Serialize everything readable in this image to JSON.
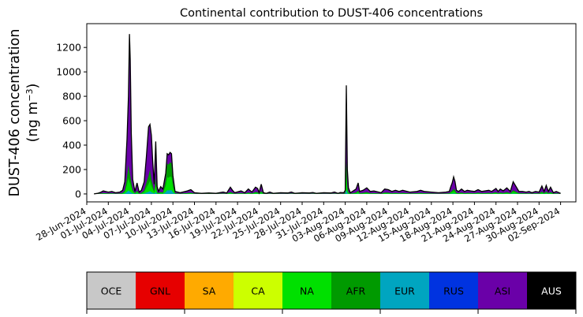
{
  "chart_data": {
    "type": "area",
    "stacked": true,
    "title": "Continental contribution to DUST-406 concentrations",
    "ylabel_line1": "DUST-406 concentration",
    "ylabel_line2_prefix": "(ng m",
    "ylabel_line2_sup": "−3",
    "ylabel_line2_suffix": ")",
    "ylim": [
      -65,
      1395
    ],
    "xlim": [
      "2024-06-28",
      "2024-09-03"
    ],
    "yticks": [
      0,
      200,
      400,
      600,
      800,
      1000,
      1200
    ],
    "xtick_labels": [
      "28-Jun-2024",
      "01-Jul-2024",
      "04-Jul-2024",
      "07-Jul-2024",
      "10-Jul-2024",
      "13-Jul-2024",
      "16-Jul-2024",
      "19-Jul-2024",
      "22-Jul-2024",
      "25-Jul-2024",
      "28-Jul-2024",
      "31-Jul-2024",
      "03-Aug-2024",
      "06-Aug-2024",
      "09-Aug-2024",
      "12-Aug-2024",
      "15-Aug-2024",
      "18-Aug-2024",
      "21-Aug-2024",
      "24-Aug-2024",
      "27-Aug-2024",
      "30-Aug-2024",
      "02-Sep-2024"
    ],
    "total_outline_color": "#000000",
    "series": [
      {
        "name": "OCE",
        "color": "#c8c8c8",
        "text_color": "#000000"
      },
      {
        "name": "GNL",
        "color": "#e60000",
        "text_color": "#000000"
      },
      {
        "name": "SA",
        "color": "#ffaa00",
        "text_color": "#000000"
      },
      {
        "name": "CA",
        "color": "#ccff00",
        "text_color": "#000000"
      },
      {
        "name": "NA",
        "color": "#00e000",
        "text_color": "#000000"
      },
      {
        "name": "AFR",
        "color": "#009a00",
        "text_color": "#000000"
      },
      {
        "name": "EUR",
        "color": "#00a5c0",
        "text_color": "#000000"
      },
      {
        "name": "RUS",
        "color": "#0033e0",
        "text_color": "#000000"
      },
      {
        "name": "ASI",
        "color": "#6a00a8",
        "text_color": "#000000"
      },
      {
        "name": "AUS",
        "color": "#000000",
        "text_color": "#ffffff"
      }
    ],
    "total": [
      [
        1.0,
        0
      ],
      [
        1.5,
        5
      ],
      [
        2.0,
        15
      ],
      [
        2.3,
        25
      ],
      [
        2.6,
        20
      ],
      [
        3.0,
        15
      ],
      [
        3.5,
        20
      ],
      [
        4.0,
        10
      ],
      [
        4.6,
        15
      ],
      [
        5.0,
        30
      ],
      [
        5.3,
        100
      ],
      [
        5.6,
        450
      ],
      [
        5.8,
        800
      ],
      [
        5.95,
        1310
      ],
      [
        6.05,
        1100
      ],
      [
        6.2,
        500
      ],
      [
        6.4,
        120
      ],
      [
        6.7,
        20
      ],
      [
        7.0,
        90
      ],
      [
        7.3,
        15
      ],
      [
        7.6,
        30
      ],
      [
        8.0,
        100
      ],
      [
        8.3,
        300
      ],
      [
        8.6,
        550
      ],
      [
        8.8,
        570
      ],
      [
        9.0,
        480
      ],
      [
        9.2,
        250
      ],
      [
        9.4,
        80
      ],
      [
        9.6,
        430
      ],
      [
        9.8,
        60
      ],
      [
        10.0,
        20
      ],
      [
        10.3,
        60
      ],
      [
        10.6,
        40
      ],
      [
        11.0,
        170
      ],
      [
        11.2,
        330
      ],
      [
        11.4,
        320
      ],
      [
        11.6,
        340
      ],
      [
        11.8,
        330
      ],
      [
        12.0,
        150
      ],
      [
        12.3,
        20
      ],
      [
        13.0,
        10
      ],
      [
        14.0,
        25
      ],
      [
        14.5,
        35
      ],
      [
        15.0,
        10
      ],
      [
        16.0,
        5
      ],
      [
        17.0,
        8
      ],
      [
        18.0,
        5
      ],
      [
        19.0,
        15
      ],
      [
        19.5,
        8
      ],
      [
        20.0,
        55
      ],
      [
        20.3,
        30
      ],
      [
        20.6,
        10
      ],
      [
        21.5,
        25
      ],
      [
        22.0,
        10
      ],
      [
        22.5,
        40
      ],
      [
        23.0,
        15
      ],
      [
        23.5,
        55
      ],
      [
        23.8,
        45
      ],
      [
        24.0,
        10
      ],
      [
        24.3,
        80
      ],
      [
        24.6,
        10
      ],
      [
        25.0,
        5
      ],
      [
        25.5,
        15
      ],
      [
        26.0,
        5
      ],
      [
        27.0,
        10
      ],
      [
        28.0,
        8
      ],
      [
        28.5,
        15
      ],
      [
        29.0,
        5
      ],
      [
        30.0,
        10
      ],
      [
        31.0,
        8
      ],
      [
        31.5,
        12
      ],
      [
        32.0,
        5
      ],
      [
        33.0,
        10
      ],
      [
        34.0,
        8
      ],
      [
        34.5,
        15
      ],
      [
        35.0,
        5
      ],
      [
        35.3,
        12
      ],
      [
        35.8,
        10
      ],
      [
        36.0,
        30
      ],
      [
        36.15,
        890
      ],
      [
        36.3,
        200
      ],
      [
        36.45,
        50
      ],
      [
        36.7,
        10
      ],
      [
        37.0,
        20
      ],
      [
        37.5,
        40
      ],
      [
        37.8,
        90
      ],
      [
        38.0,
        20
      ],
      [
        38.5,
        30
      ],
      [
        39.0,
        50
      ],
      [
        39.5,
        20
      ],
      [
        40.0,
        25
      ],
      [
        41.0,
        10
      ],
      [
        41.5,
        40
      ],
      [
        42.0,
        35
      ],
      [
        42.5,
        20
      ],
      [
        43.0,
        30
      ],
      [
        43.5,
        20
      ],
      [
        44.0,
        30
      ],
      [
        45.0,
        15
      ],
      [
        46.0,
        20
      ],
      [
        46.5,
        30
      ],
      [
        47.0,
        20
      ],
      [
        48.0,
        15
      ],
      [
        49.0,
        10
      ],
      [
        50.0,
        15
      ],
      [
        50.5,
        20
      ],
      [
        50.7,
        60
      ],
      [
        50.9,
        90
      ],
      [
        51.1,
        140
      ],
      [
        51.3,
        100
      ],
      [
        51.5,
        30
      ],
      [
        51.8,
        20
      ],
      [
        52.2,
        40
      ],
      [
        52.6,
        20
      ],
      [
        53.0,
        30
      ],
      [
        53.5,
        25
      ],
      [
        54.0,
        20
      ],
      [
        54.5,
        35
      ],
      [
        55.0,
        20
      ],
      [
        56.0,
        30
      ],
      [
        56.4,
        20
      ],
      [
        57.0,
        45
      ],
      [
        57.3,
        20
      ],
      [
        57.6,
        40
      ],
      [
        58.0,
        25
      ],
      [
        58.5,
        50
      ],
      [
        59.0,
        20
      ],
      [
        59.4,
        100
      ],
      [
        59.8,
        60
      ],
      [
        60.2,
        20
      ],
      [
        60.7,
        20
      ],
      [
        61.2,
        15
      ],
      [
        61.6,
        20
      ],
      [
        62.0,
        10
      ],
      [
        62.5,
        20
      ],
      [
        63.0,
        15
      ],
      [
        63.4,
        65
      ],
      [
        63.7,
        20
      ],
      [
        64.0,
        70
      ],
      [
        64.3,
        20
      ],
      [
        64.6,
        55
      ],
      [
        65.0,
        10
      ],
      [
        65.4,
        20
      ],
      [
        66.0,
        5
      ]
    ],
    "asi_fraction_note": "",
    "asi_points": [
      [
        5.6,
        200
      ],
      [
        5.8,
        400
      ],
      [
        5.95,
        650
      ],
      [
        6.05,
        600
      ],
      [
        6.2,
        300
      ],
      [
        8.3,
        150
      ],
      [
        8.6,
        300
      ],
      [
        8.8,
        350
      ],
      [
        9.0,
        300
      ],
      [
        9.2,
        150
      ],
      [
        36.15,
        150
      ],
      [
        36.3,
        100
      ],
      [
        51.1,
        100
      ],
      [
        59.4,
        60
      ]
    ],
    "green_points": [
      [
        5.95,
        180
      ],
      [
        6.05,
        150
      ],
      [
        6.2,
        100
      ],
      [
        8.6,
        150
      ],
      [
        8.8,
        200
      ],
      [
        9.0,
        120
      ],
      [
        11.0,
        120
      ],
      [
        11.2,
        250
      ],
      [
        11.4,
        240
      ],
      [
        11.6,
        260
      ],
      [
        11.8,
        250
      ],
      [
        12.0,
        100
      ]
    ]
  },
  "legend": {
    "items": [
      "OCE",
      "GNL",
      "SA",
      "CA",
      "NA",
      "AFR",
      "EUR",
      "RUS",
      "ASI",
      "AUS"
    ]
  }
}
